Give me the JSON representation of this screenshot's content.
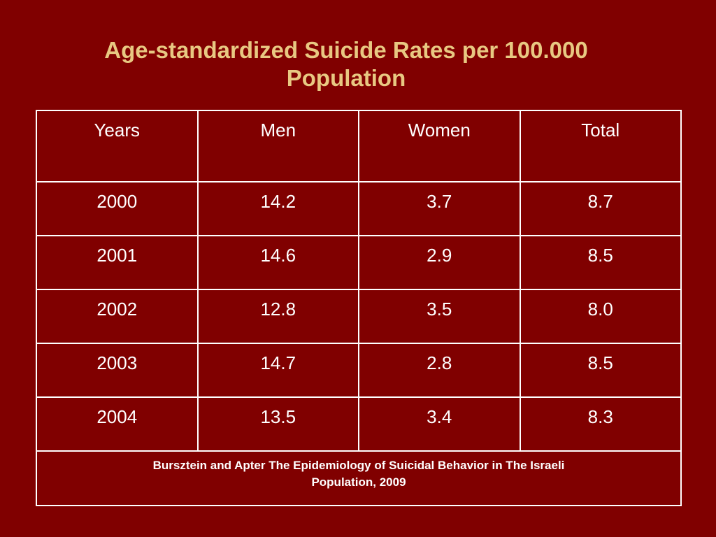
{
  "slide": {
    "title_line1": "Age-standardized Suicide Rates per 100.000",
    "title_line2": "Population"
  },
  "table": {
    "headers": [
      "Years",
      "Men",
      "Women",
      "Total"
    ],
    "rows": [
      [
        "2000",
        "14.2",
        "3.7",
        "8.7"
      ],
      [
        "2001",
        "14.6",
        "2.9",
        "8.5"
      ],
      [
        "2002",
        "12.8",
        "3.5",
        "8.0"
      ],
      [
        "2003",
        "14.7",
        "2.8",
        "8.5"
      ],
      [
        "2004",
        "13.5",
        "3.4",
        "8.3"
      ]
    ],
    "source_line1": "Bursztein and Apter The Epidemiology of Suicidal Behavior in The Israeli",
    "source_line2": "Population, 2009"
  },
  "colors": {
    "background": "#800000",
    "title": "#e8c882",
    "text": "#ffffff"
  }
}
